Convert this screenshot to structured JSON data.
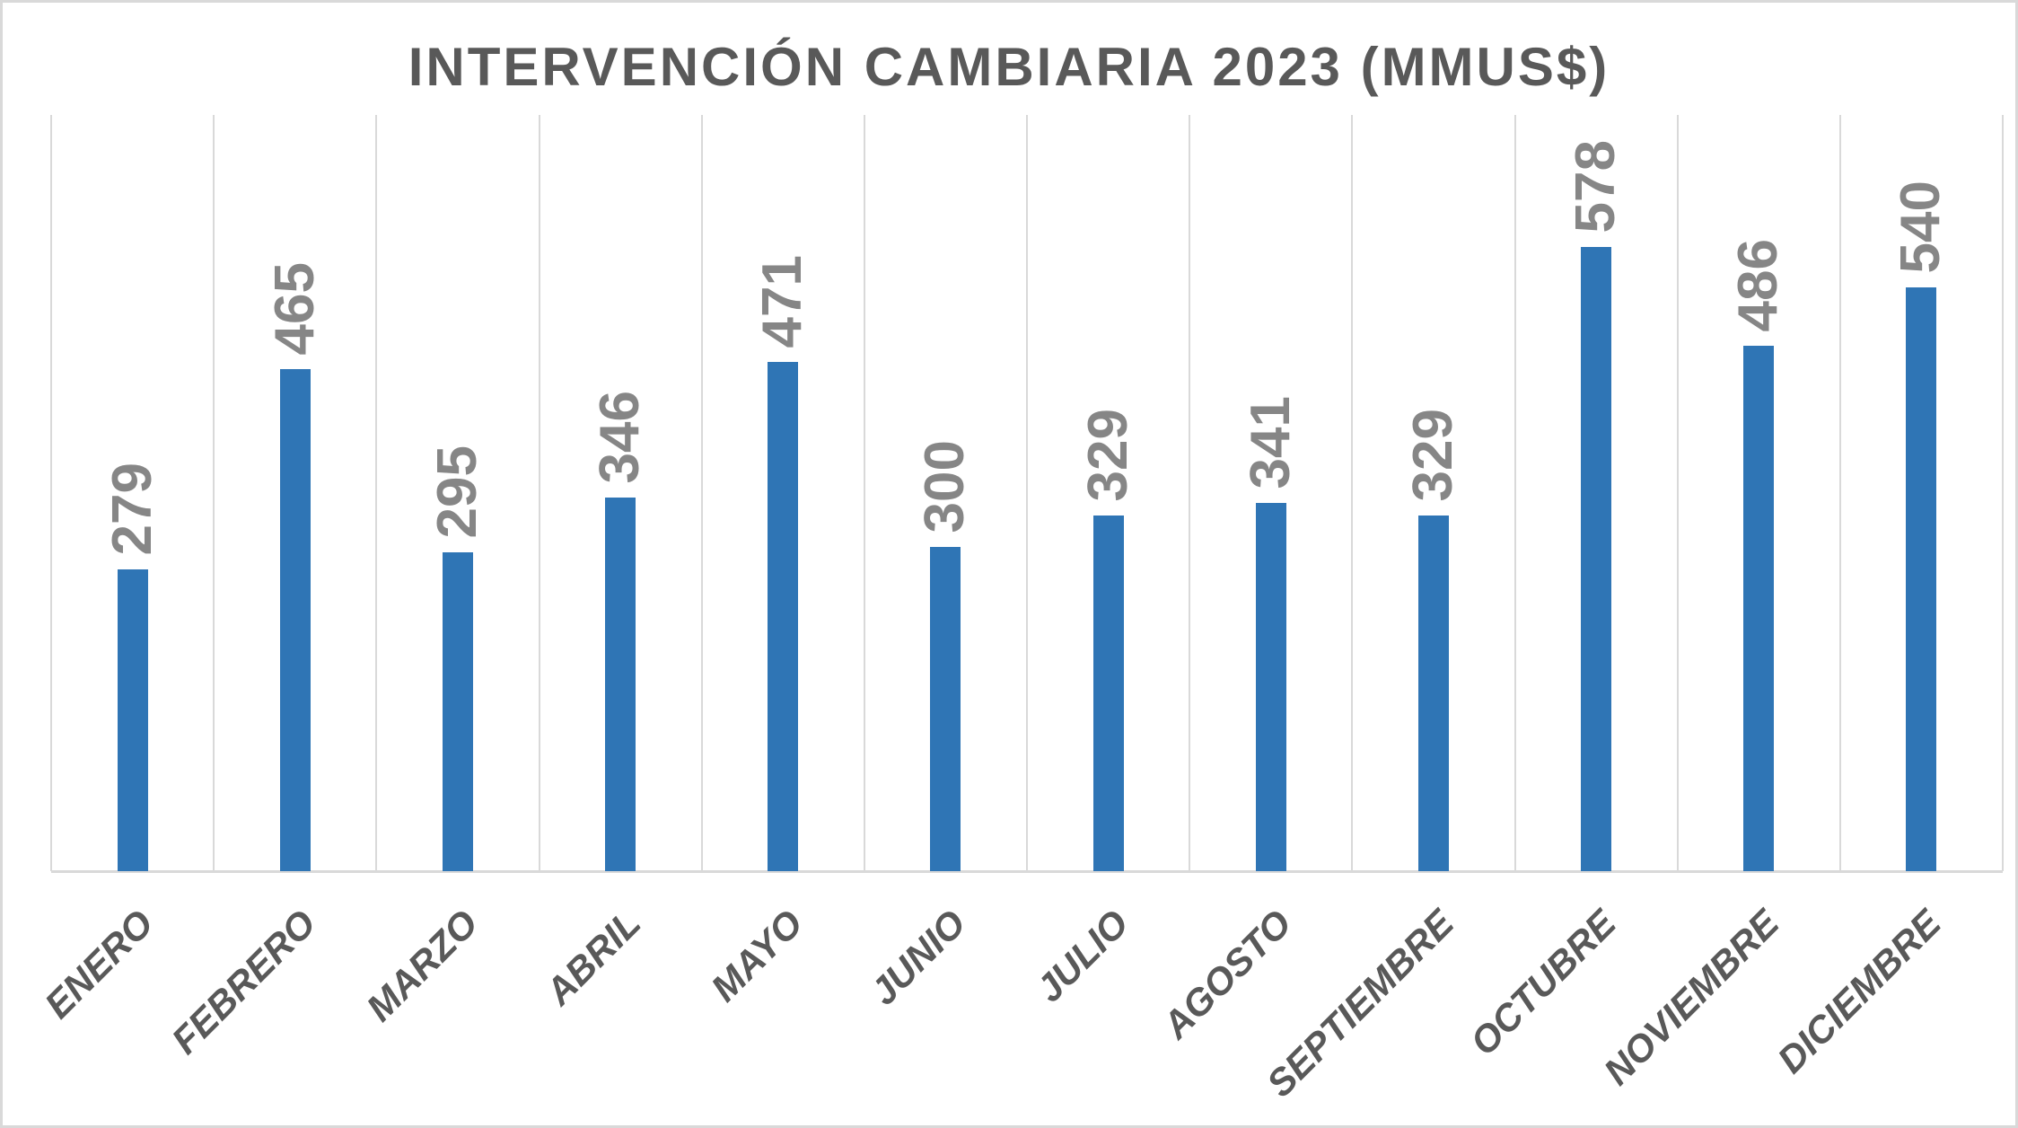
{
  "chart_data": {
    "type": "bar",
    "title": "INTERVENCIÓN CAMBIARIA 2023 (MMUS$)",
    "categories": [
      "ENERO",
      "FEBRERO",
      "MARZO",
      "ABRIL",
      "MAYO",
      "JUNIO",
      "JULIO",
      "AGOSTO",
      "SEPTIEMBRE",
      "OCTUBRE",
      "NOVIEMBRE",
      "DICIEMBRE"
    ],
    "values": [
      279,
      465,
      295,
      346,
      471,
      300,
      329,
      341,
      329,
      578,
      486,
      540
    ],
    "xlabel": "",
    "ylabel": "",
    "ylim": [
      0,
      700
    ],
    "grid": "vertical category separators only",
    "legend_position": "none",
    "value_label_rotation": -90,
    "category_label_rotation": -45,
    "colors": {
      "bar": "#2F75B5",
      "value_label": "#868686",
      "category_label": "#595959",
      "title": "#595959",
      "gridline": "#D9D9D9",
      "axis_line": "#D9D9D9",
      "border": "#D9D9D9",
      "background": "#FFFFFF"
    }
  }
}
